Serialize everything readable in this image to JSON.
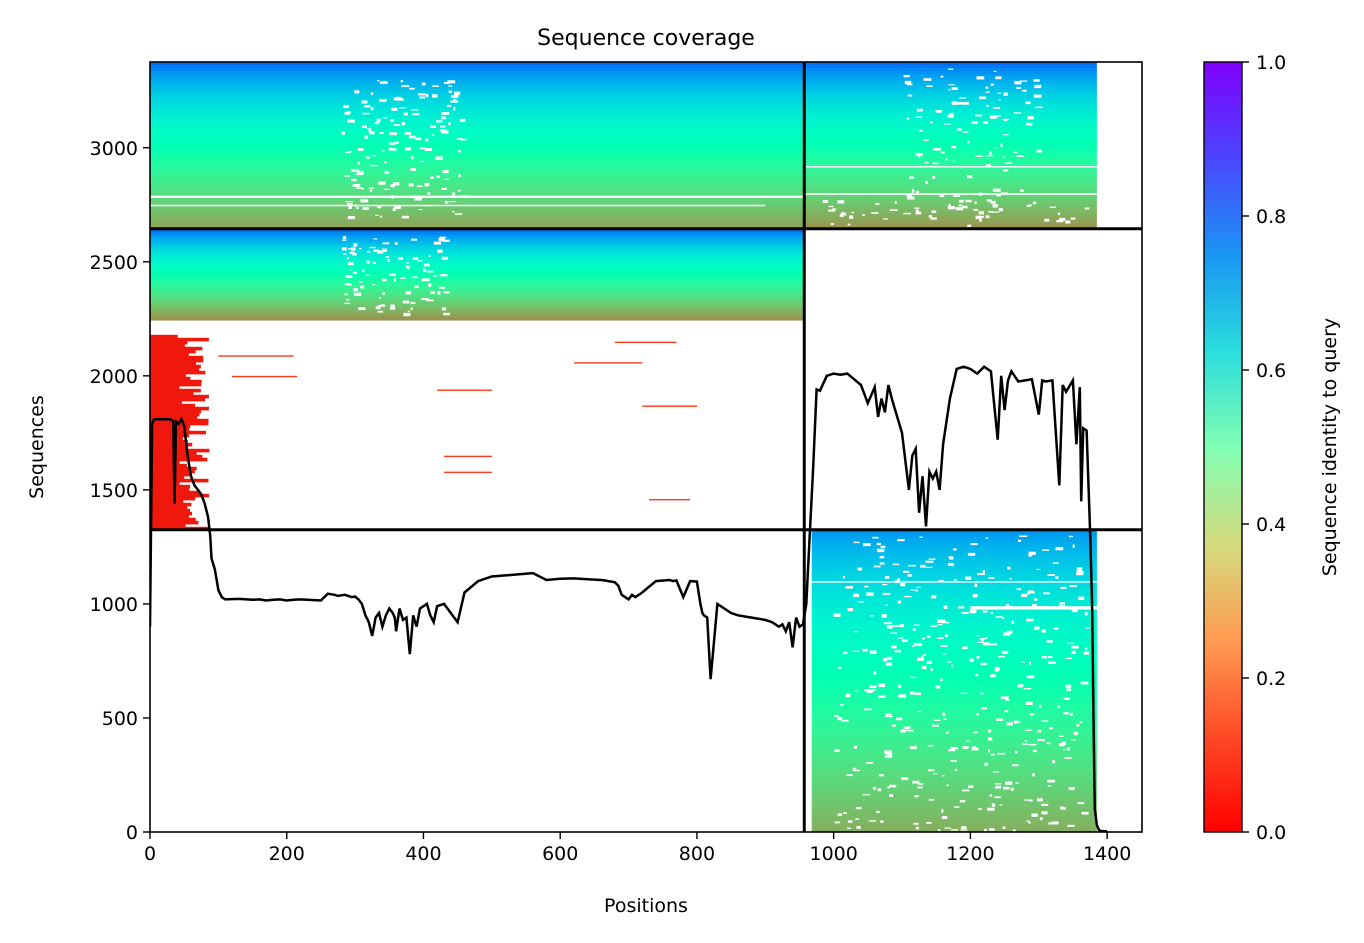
{
  "chart_data": {
    "type": "heatmap",
    "title": "Sequence coverage",
    "xlabel": "Positions",
    "ylabel": "Sequences",
    "xlim": [
      0,
      1451
    ],
    "ylim": [
      0,
      3376
    ],
    "x_ticks": [
      0,
      200,
      400,
      600,
      800,
      1000,
      1200,
      1400
    ],
    "y_ticks": [
      0,
      500,
      1000,
      1500,
      2000,
      2500,
      3000
    ],
    "grid": false,
    "colorbar": {
      "label": "Sequence identity to query",
      "colormap": "rainbow_r",
      "range": [
        0,
        1
      ],
      "ticks": [
        "0.0",
        "0.2",
        "0.4",
        "0.6",
        "0.8",
        "1.0"
      ]
    },
    "chain_boundaries": {
      "x": [
        957
      ],
      "y": [
        1325,
        2645
      ]
    },
    "blocks": [
      {
        "name": "chain1-pair",
        "x": [
          0,
          957
        ],
        "y": [
          2645,
          3376
        ],
        "identity_top": 0.86,
        "identity_bottom": 0.22
      },
      {
        "name": "chain2-pair",
        "x": [
          957,
          1385
        ],
        "y": [
          2645,
          3376
        ],
        "identity_top": 0.86,
        "identity_bottom": 0.2
      },
      {
        "name": "chain1-unpaired",
        "x": [
          0,
          957
        ],
        "y": [
          2245,
          2645
        ],
        "identity_top": 0.86,
        "identity_bottom": 0.2
      },
      {
        "name": "chain1-low-identity",
        "x": [
          0,
          90
        ],
        "y": [
          1325,
          2180
        ],
        "identity_top": 0.03,
        "identity_bottom": 0.03
      },
      {
        "name": "chain2-unpaired",
        "x": [
          968,
          1385
        ],
        "y": [
          0,
          1325
        ],
        "identity_top": 0.8,
        "identity_bottom": 0.24
      }
    ],
    "coverage_line": {
      "color": "#000000",
      "x": [
        0,
        3,
        6,
        30,
        34,
        36,
        38,
        42,
        46,
        50,
        55,
        60,
        65,
        70,
        75,
        80,
        85,
        88,
        90,
        95,
        100,
        105,
        110,
        130,
        150,
        160,
        170,
        180,
        190,
        200,
        210,
        220,
        230,
        250,
        260,
        270,
        275,
        280,
        285,
        290,
        295,
        300,
        305,
        310,
        315,
        320,
        325,
        330,
        335,
        340,
        345,
        350,
        355,
        358,
        360,
        365,
        370,
        375,
        380,
        385,
        390,
        395,
        400,
        405,
        410,
        415,
        420,
        430,
        440,
        450,
        460,
        480,
        500,
        520,
        540,
        560,
        580,
        600,
        620,
        640,
        660,
        665,
        670,
        675,
        680,
        685,
        690,
        700,
        705,
        710,
        720,
        740,
        760,
        765,
        770,
        780,
        790,
        800,
        805,
        808,
        810,
        815,
        820,
        830,
        840,
        850,
        860,
        880,
        900,
        910,
        920,
        925,
        930,
        935,
        940,
        945,
        950,
        955,
        960,
        965,
        970,
        975,
        980,
        990,
        1000,
        1010,
        1020,
        1040,
        1050,
        1060,
        1065,
        1070,
        1075,
        1080,
        1085,
        1090,
        1100,
        1110,
        1115,
        1120,
        1125,
        1130,
        1135,
        1140,
        1145,
        1150,
        1155,
        1160,
        1170,
        1180,
        1190,
        1200,
        1210,
        1220,
        1230,
        1240,
        1245,
        1250,
        1255,
        1260,
        1270,
        1280,
        1290,
        1300,
        1305,
        1310,
        1320,
        1330,
        1335,
        1340,
        1350,
        1355,
        1360,
        1362,
        1365,
        1370,
        1375,
        1378,
        1380,
        1382,
        1385,
        1388,
        1390,
        1395,
        1400,
        1410,
        1420,
        1451
      ],
      "y": [
        900,
        1790,
        1810,
        1810,
        1800,
        1440,
        1800,
        1790,
        1810,
        1780,
        1650,
        1560,
        1520,
        1500,
        1480,
        1440,
        1380,
        1300,
        1200,
        1150,
        1060,
        1030,
        1020,
        1022,
        1018,
        1020,
        1015,
        1018,
        1020,
        1015,
        1018,
        1020,
        1018,
        1015,
        1045,
        1040,
        1035,
        1038,
        1040,
        1035,
        1030,
        1032,
        1020,
        1000,
        950,
        920,
        860,
        940,
        960,
        900,
        950,
        980,
        960,
        940,
        880,
        980,
        930,
        940,
        780,
        950,
        900,
        980,
        990,
        1000,
        950,
        920,
        990,
        1000,
        960,
        920,
        1050,
        1100,
        1120,
        1125,
        1130,
        1135,
        1105,
        1110,
        1112,
        1108,
        1105,
        1103,
        1100,
        1098,
        1095,
        1080,
        1040,
        1020,
        1040,
        1030,
        1050,
        1100,
        1105,
        1100,
        1103,
        1030,
        1100,
        1098,
        1000,
        960,
        950,
        940,
        670,
        1000,
        980,
        960,
        950,
        940,
        930,
        920,
        900,
        910,
        880,
        920,
        810,
        940,
        900,
        910,
        1000,
        1300,
        1600,
        1940,
        1935,
        2000,
        2010,
        2005,
        2010,
        1960,
        1880,
        1950,
        1820,
        1900,
        1840,
        1960,
        1900,
        1850,
        1750,
        1500,
        1650,
        1680,
        1400,
        1560,
        1340,
        1580,
        1550,
        1580,
        1500,
        1700,
        1900,
        2030,
        2040,
        2030,
        2010,
        2040,
        2020,
        1720,
        2000,
        1850,
        1980,
        2020,
        1975,
        1980,
        1985,
        1830,
        1980,
        1975,
        1980,
        1520,
        1960,
        1930,
        1980,
        1700,
        1950,
        1450,
        1770,
        1760,
        1330,
        1000,
        500,
        100,
        30,
        10,
        5,
        3,
        3
      ]
    }
  }
}
